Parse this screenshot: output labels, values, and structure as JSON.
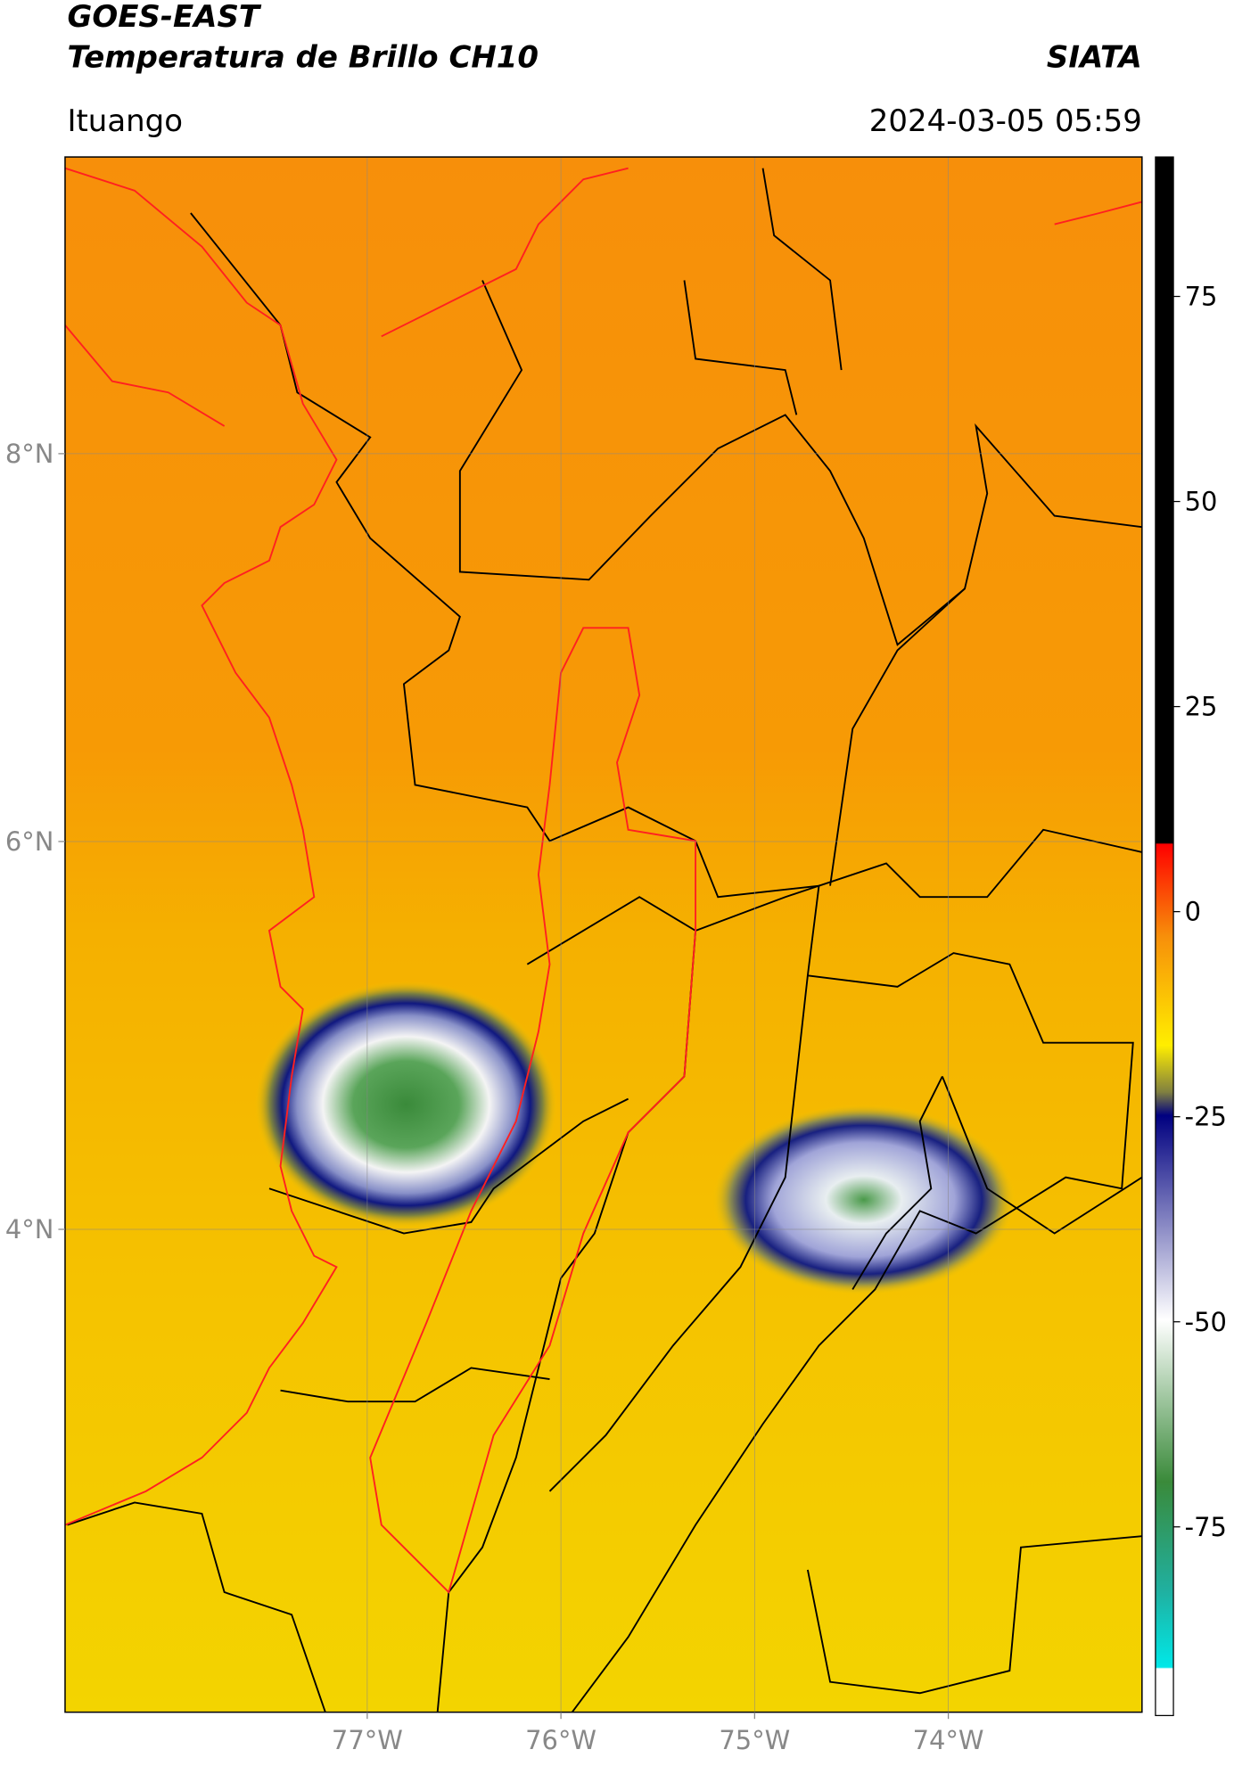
{
  "chart_data": {
    "type": "map",
    "title": "GOES-EAST",
    "subtitle": "Temperatura de Brillo CH10",
    "source": "SIATA",
    "location": "Ituango",
    "datetime": "2024-03-05 05:59",
    "xlim": [
      -78.56,
      -73.0
    ],
    "ylim": [
      1.51,
      9.53
    ],
    "xticks": [
      {
        "value": -77,
        "label": "77°W"
      },
      {
        "value": -76,
        "label": "76°W"
      },
      {
        "value": -75,
        "label": "75°W"
      },
      {
        "value": -74,
        "label": "74°W"
      }
    ],
    "yticks": [
      {
        "value": 8,
        "label": "8°N"
      },
      {
        "value": 6,
        "label": "6°N"
      },
      {
        "value": 4,
        "label": "4°N"
      }
    ],
    "grid": true,
    "colorbar": {
      "lim": [
        -98,
        92
      ],
      "ticks": [
        75,
        50,
        25,
        0,
        -25,
        -50,
        -75
      ]
    }
  }
}
